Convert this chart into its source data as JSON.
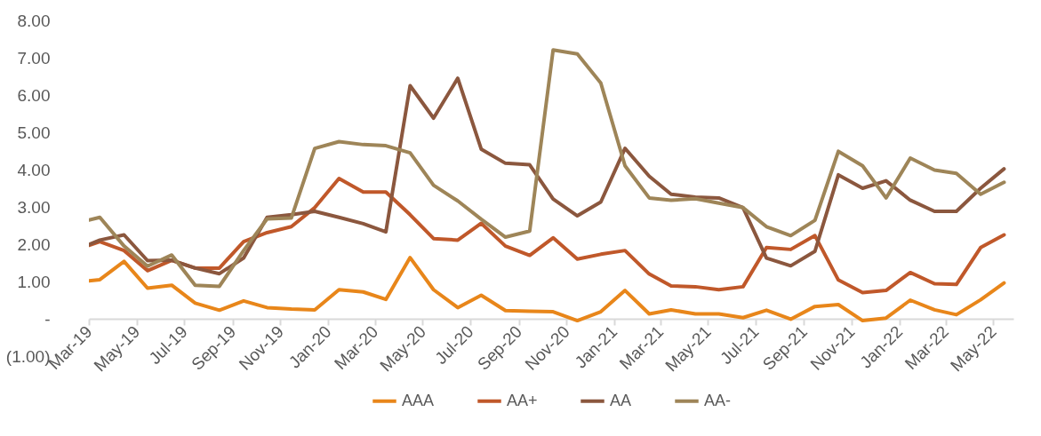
{
  "chart_data": {
    "type": "line",
    "x": [
      "2019-03-01",
      "2019-03-15",
      "2019-04-15",
      "2019-05-15",
      "2019-06-15",
      "2019-07-15",
      "2019-08-15",
      "2019-09-15",
      "2019-10-15",
      "2019-11-15",
      "2019-12-15",
      "2020-01-15",
      "2020-02-15",
      "2020-03-15",
      "2020-04-15",
      "2020-05-15",
      "2020-06-15",
      "2020-07-15",
      "2020-08-15",
      "2020-09-15",
      "2020-10-15",
      "2020-11-15",
      "2020-12-15",
      "2021-01-15",
      "2021-02-15",
      "2021-03-15",
      "2021-04-15",
      "2021-05-15",
      "2021-06-15",
      "2021-07-15",
      "2021-08-15",
      "2021-09-15",
      "2021-10-15",
      "2021-11-15",
      "2021-12-15",
      "2022-01-15",
      "2022-02-15",
      "2022-03-15",
      "2022-04-15",
      "2022-05-15"
    ],
    "series": [
      {
        "name": "AAA",
        "color": "#e8861a",
        "values": [
          1.02,
          1.05,
          1.54,
          0.82,
          0.9,
          0.42,
          0.23,
          0.48,
          0.3,
          0.26,
          0.24,
          0.78,
          0.72,
          0.52,
          1.64,
          0.78,
          0.3,
          0.63,
          0.22,
          0.2,
          0.19,
          -0.05,
          0.19,
          0.76,
          0.13,
          0.24,
          0.13,
          0.13,
          0.03,
          0.23,
          -0.01,
          0.33,
          0.38,
          -0.05,
          0.02,
          0.5,
          0.24,
          0.11,
          0.51,
          0.96
        ]
      },
      {
        "name": "AA+",
        "color": "#c0582a",
        "values": [
          1.97,
          2.07,
          1.83,
          1.29,
          1.57,
          1.36,
          1.36,
          2.07,
          2.31,
          2.47,
          2.98,
          3.76,
          3.4,
          3.4,
          2.79,
          2.15,
          2.11,
          2.56,
          1.95,
          1.7,
          2.17,
          1.6,
          1.73,
          1.83,
          1.2,
          0.88,
          0.86,
          0.78,
          0.86,
          1.91,
          1.86,
          2.23,
          1.04,
          0.7,
          0.76,
          1.24,
          0.94,
          0.92,
          1.91,
          2.25
        ]
      },
      {
        "name": "AA",
        "color": "#8b573e",
        "values": [
          1.99,
          2.11,
          2.25,
          1.56,
          1.57,
          1.36,
          1.21,
          1.63,
          2.72,
          2.79,
          2.88,
          2.72,
          2.55,
          2.33,
          6.25,
          5.38,
          6.45,
          4.55,
          4.17,
          4.13,
          3.21,
          2.76,
          3.13,
          4.57,
          3.82,
          3.34,
          3.26,
          3.24,
          2.98,
          1.63,
          1.42,
          1.81,
          3.86,
          3.5,
          3.7,
          3.18,
          2.88,
          2.88,
          3.5,
          4.02
        ]
      },
      {
        "name": "AA-",
        "color": "#9e8558",
        "values": [
          2.65,
          2.72,
          1.95,
          1.41,
          1.71,
          0.9,
          0.87,
          1.83,
          2.68,
          2.7,
          4.57,
          4.75,
          4.67,
          4.64,
          4.45,
          3.58,
          3.16,
          2.67,
          2.19,
          2.35,
          7.21,
          7.1,
          6.32,
          4.1,
          3.24,
          3.18,
          3.22,
          3.1,
          2.98,
          2.47,
          2.23,
          2.64,
          4.49,
          4.1,
          3.24,
          4.31,
          3.99,
          3.9,
          3.34,
          3.66
        ]
      }
    ],
    "xlim": [
      "2019-03-01",
      "2022-05-27"
    ],
    "xticks": [
      {
        "value": "2019-03-01",
        "label": "Mar-19"
      },
      {
        "value": "2019-05-01",
        "label": "May-19"
      },
      {
        "value": "2019-07-01",
        "label": "Jul-19"
      },
      {
        "value": "2019-09-01",
        "label": "Sep-19"
      },
      {
        "value": "2019-11-01",
        "label": "Nov-19"
      },
      {
        "value": "2020-01-01",
        "label": "Jan-20"
      },
      {
        "value": "2020-03-01",
        "label": "Mar-20"
      },
      {
        "value": "2020-05-01",
        "label": "May-20"
      },
      {
        "value": "2020-07-01",
        "label": "Jul-20"
      },
      {
        "value": "2020-09-01",
        "label": "Sep-20"
      },
      {
        "value": "2020-11-01",
        "label": "Nov-20"
      },
      {
        "value": "2021-01-01",
        "label": "Jan-21"
      },
      {
        "value": "2021-03-01",
        "label": "Mar-21"
      },
      {
        "value": "2021-05-01",
        "label": "May-21"
      },
      {
        "value": "2021-07-01",
        "label": "Jul-21"
      },
      {
        "value": "2021-09-01",
        "label": "Sep-21"
      },
      {
        "value": "2021-11-01",
        "label": "Nov-21"
      },
      {
        "value": "2022-01-01",
        "label": "Jan-22"
      },
      {
        "value": "2022-03-01",
        "label": "Mar-22"
      },
      {
        "value": "2022-05-01",
        "label": "May-22"
      }
    ],
    "ylim": [
      -1,
      8
    ],
    "yticks": [
      {
        "value": 8,
        "label": "8.00"
      },
      {
        "value": 7,
        "label": "7.00"
      },
      {
        "value": 6,
        "label": "6.00"
      },
      {
        "value": 5,
        "label": "5.00"
      },
      {
        "value": 4,
        "label": "4.00"
      },
      {
        "value": 3,
        "label": "3.00"
      },
      {
        "value": 2,
        "label": "2.00"
      },
      {
        "value": 1,
        "label": "1.00"
      },
      {
        "value": 0,
        "label": "-"
      },
      {
        "value": -1,
        "label": "(1.00)"
      }
    ],
    "grid": false,
    "legend": "bottom"
  }
}
